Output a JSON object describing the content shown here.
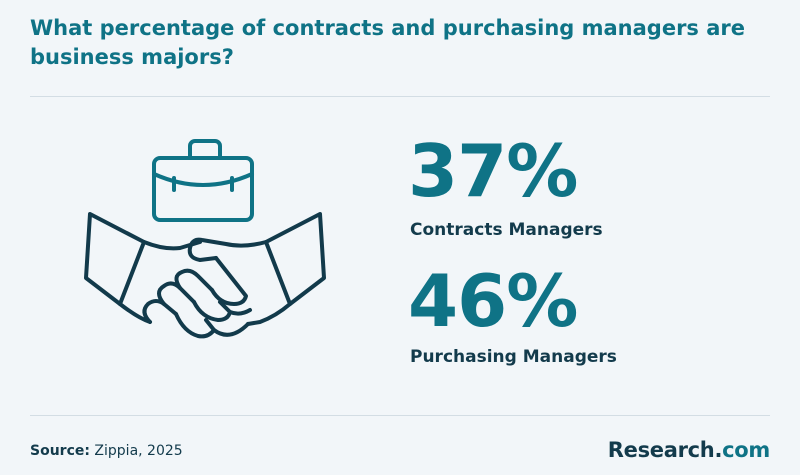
{
  "header": {
    "title": "What percentage of contracts and purchasing managers are business majors?"
  },
  "chart_data": {
    "type": "table",
    "categories": [
      "Contracts Managers",
      "Purchasing Managers"
    ],
    "values": [
      37,
      46
    ],
    "unit": "%",
    "stats": [
      {
        "value": "37%",
        "label": "Contracts Managers"
      },
      {
        "value": "46%",
        "label": "Purchasing Managers"
      }
    ]
  },
  "illustration": {
    "icon": "handshake-briefcase-icon",
    "stroke_color": "#123a4b",
    "accent_color": "#0f7386"
  },
  "footer": {
    "source_label": "Source:",
    "source_text": "Zippia, 2025",
    "brand_name": "Research",
    "brand_dot": ".",
    "brand_tld": "com"
  },
  "colors": {
    "background": "#f2f6f9",
    "accent": "#0f7386",
    "text": "#133b4c",
    "divider": "#d3dde4"
  }
}
